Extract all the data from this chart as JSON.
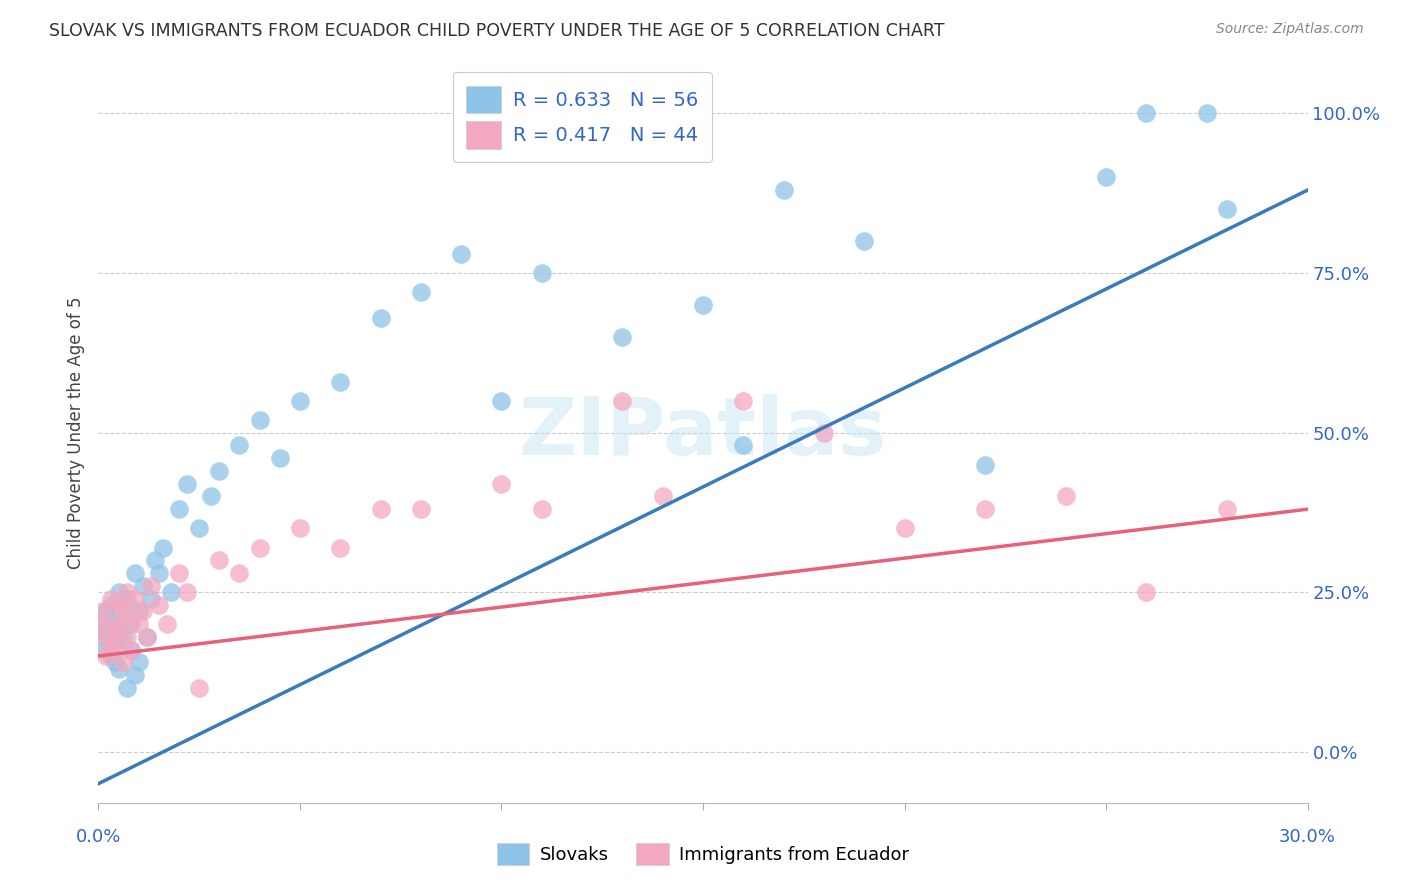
{
  "title": "SLOVAK VS IMMIGRANTS FROM ECUADOR CHILD POVERTY UNDER THE AGE OF 5 CORRELATION CHART",
  "source": "Source: ZipAtlas.com",
  "ylabel": "Child Poverty Under the Age of 5",
  "watermark": "ZIPatlas",
  "legend_label1": "Slovaks",
  "legend_label2": "Immigrants from Ecuador",
  "R1": 0.633,
  "N1": 56,
  "R2": 0.417,
  "N2": 44,
  "blue_color": "#8ec4e8",
  "blue_line_color": "#3a7abf",
  "pink_color": "#f4a8bf",
  "pink_line_color": "#e8607a",
  "blue_text_color": "#3366cc",
  "background_color": "#ffffff",
  "grid_color": "#cccccc",
  "xlim": [
    0.0,
    0.3
  ],
  "ylim": [
    -0.08,
    1.08
  ],
  "right_ytick_vals": [
    0.0,
    0.25,
    0.5,
    0.75,
    1.0
  ],
  "right_yticklabels": [
    "0.0%",
    "25.0%",
    "50.0%",
    "75.0%",
    "100.0%"
  ],
  "blue_line_x0": 0.0,
  "blue_line_y0": -0.05,
  "blue_line_x1": 0.3,
  "blue_line_y1": 0.88,
  "pink_line_x0": 0.0,
  "pink_line_y0": 0.15,
  "pink_line_x1": 0.3,
  "pink_line_y1": 0.38,
  "slovaks_x": [
    0.001,
    0.001,
    0.002,
    0.002,
    0.002,
    0.003,
    0.003,
    0.003,
    0.004,
    0.004,
    0.004,
    0.005,
    0.005,
    0.005,
    0.006,
    0.006,
    0.007,
    0.007,
    0.008,
    0.008,
    0.009,
    0.009,
    0.01,
    0.01,
    0.011,
    0.012,
    0.013,
    0.014,
    0.015,
    0.016,
    0.018,
    0.02,
    0.022,
    0.025,
    0.028,
    0.03,
    0.035,
    0.04,
    0.045,
    0.05,
    0.06,
    0.07,
    0.08,
    0.09,
    0.1,
    0.11,
    0.13,
    0.15,
    0.16,
    0.17,
    0.19,
    0.22,
    0.25,
    0.26,
    0.275,
    0.28
  ],
  "slovaks_y": [
    0.18,
    0.2,
    0.16,
    0.22,
    0.19,
    0.15,
    0.21,
    0.23,
    0.14,
    0.2,
    0.17,
    0.13,
    0.19,
    0.25,
    0.18,
    0.22,
    0.1,
    0.24,
    0.2,
    0.16,
    0.12,
    0.28,
    0.14,
    0.22,
    0.26,
    0.18,
    0.24,
    0.3,
    0.28,
    0.32,
    0.25,
    0.38,
    0.42,
    0.35,
    0.4,
    0.44,
    0.48,
    0.52,
    0.46,
    0.55,
    0.58,
    0.68,
    0.72,
    0.78,
    0.55,
    0.75,
    0.65,
    0.7,
    0.48,
    0.88,
    0.8,
    0.45,
    0.9,
    1.0,
    1.0,
    0.85
  ],
  "ecuador_x": [
    0.001,
    0.001,
    0.002,
    0.002,
    0.003,
    0.003,
    0.004,
    0.004,
    0.005,
    0.005,
    0.006,
    0.006,
    0.007,
    0.007,
    0.008,
    0.008,
    0.009,
    0.01,
    0.011,
    0.012,
    0.013,
    0.015,
    0.017,
    0.02,
    0.022,
    0.025,
    0.03,
    0.035,
    0.04,
    0.05,
    0.06,
    0.07,
    0.08,
    0.1,
    0.11,
    0.13,
    0.14,
    0.16,
    0.18,
    0.2,
    0.22,
    0.24,
    0.26,
    0.28
  ],
  "ecuador_y": [
    0.2,
    0.22,
    0.15,
    0.18,
    0.24,
    0.16,
    0.2,
    0.17,
    0.23,
    0.19,
    0.14,
    0.22,
    0.18,
    0.25,
    0.16,
    0.21,
    0.24,
    0.2,
    0.22,
    0.18,
    0.26,
    0.23,
    0.2,
    0.28,
    0.25,
    0.1,
    0.3,
    0.28,
    0.32,
    0.35,
    0.32,
    0.38,
    0.38,
    0.42,
    0.38,
    0.55,
    0.4,
    0.55,
    0.5,
    0.35,
    0.38,
    0.4,
    0.25,
    0.38
  ]
}
